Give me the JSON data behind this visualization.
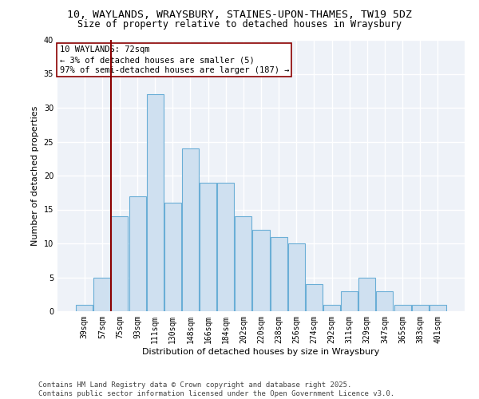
{
  "title1": "10, WAYLANDS, WRAYSBURY, STAINES-UPON-THAMES, TW19 5DZ",
  "title2": "Size of property relative to detached houses in Wraysbury",
  "xlabel": "Distribution of detached houses by size in Wraysbury",
  "ylabel": "Number of detached properties",
  "categories": [
    "39sqm",
    "57sqm",
    "75sqm",
    "93sqm",
    "111sqm",
    "130sqm",
    "148sqm",
    "166sqm",
    "184sqm",
    "202sqm",
    "220sqm",
    "238sqm",
    "256sqm",
    "274sqm",
    "292sqm",
    "311sqm",
    "329sqm",
    "347sqm",
    "365sqm",
    "383sqm",
    "401sqm"
  ],
  "values": [
    1,
    5,
    14,
    17,
    32,
    16,
    24,
    19,
    19,
    14,
    12,
    11,
    10,
    4,
    1,
    3,
    5,
    3,
    1,
    1,
    1
  ],
  "bar_color": "#cfe0f0",
  "bar_edge_color": "#6aaed6",
  "highlight_color": "#8b0000",
  "annotation_text": "10 WAYLANDS: 72sqm\n← 3% of detached houses are smaller (5)\n97% of semi-detached houses are larger (187) →",
  "ylim": [
    0,
    40
  ],
  "yticks": [
    0,
    5,
    10,
    15,
    20,
    25,
    30,
    35,
    40
  ],
  "footer": "Contains HM Land Registry data © Crown copyright and database right 2025.\nContains public sector information licensed under the Open Government Licence v3.0.",
  "bg_color": "#ffffff",
  "plot_bg_color": "#eef2f8",
  "grid_color": "#ffffff",
  "title_fontsize": 9.5,
  "subtitle_fontsize": 8.5,
  "axis_label_fontsize": 8,
  "tick_fontsize": 7,
  "annotation_fontsize": 7.5,
  "footer_fontsize": 6.5
}
